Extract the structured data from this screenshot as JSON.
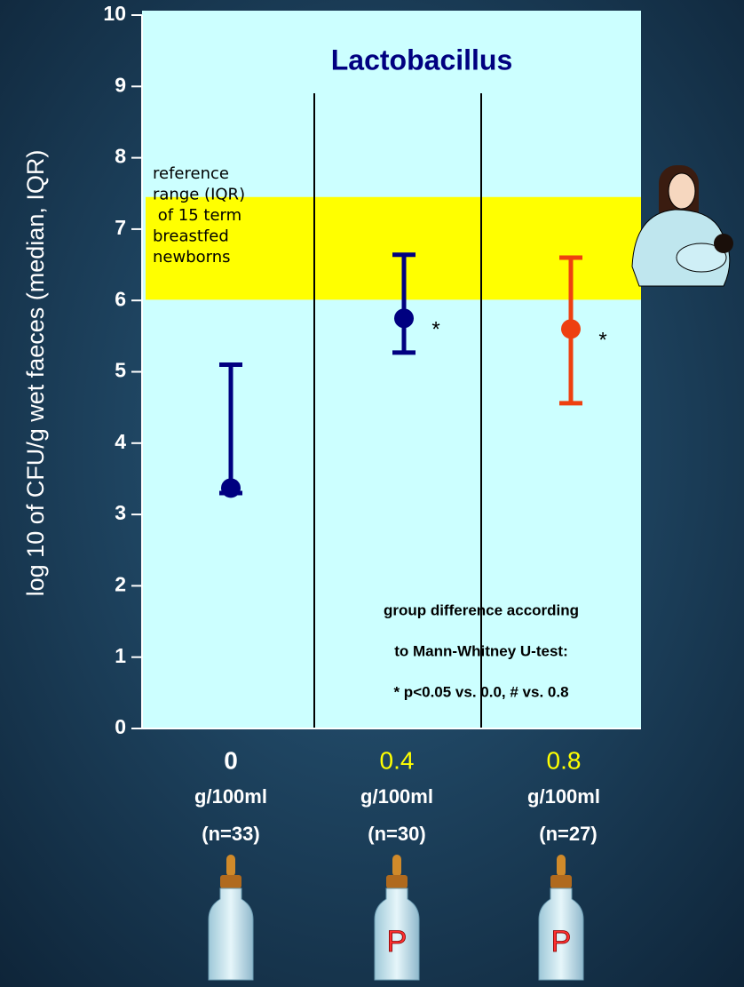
{
  "chart_data": {
    "type": "errorbar",
    "title": "Lactobacillus",
    "y_label": "log 10 of CFU/g wet faeces (median, IQR)",
    "categories": [
      "0",
      "0.4",
      "0.8"
    ],
    "category_label_colors": [
      "#ffffff",
      "#ffff00",
      "#ffff00"
    ],
    "unit_label": "g/100ml",
    "n_labels": [
      "(n=33)",
      "(n=30)",
      "(n=27)"
    ],
    "series": [
      {
        "values": [
          3.37,
          5.75,
          5.6
        ],
        "lower": [
          3.3,
          5.27,
          4.56
        ],
        "upper": [
          5.1,
          6.64,
          6.6
        ],
        "colors": [
          "#000080",
          "#000080",
          "#ee4010"
        ]
      }
    ],
    "significance_marks": [
      null,
      "*",
      "*"
    ],
    "reference_range": {
      "lower": 6.01,
      "upper": 7.45,
      "color": "#ffff00",
      "text_lines": [
        "reference",
        "range (IQR)",
        " of 15 term",
        "breastfed",
        "newborns"
      ]
    },
    "footnote_lines": [
      "group difference according",
      "to Mann-Whitney U-test:",
      "* p<0.05 vs. 0.0, # vs. 0.8"
    ],
    "bottle_labels": [
      null,
      "P",
      "P"
    ],
    "ylim": [
      0,
      10
    ],
    "yticks": [
      0,
      1,
      2,
      3,
      4,
      5,
      6,
      7,
      8,
      9,
      10
    ],
    "plot_background": "#ccffff"
  }
}
